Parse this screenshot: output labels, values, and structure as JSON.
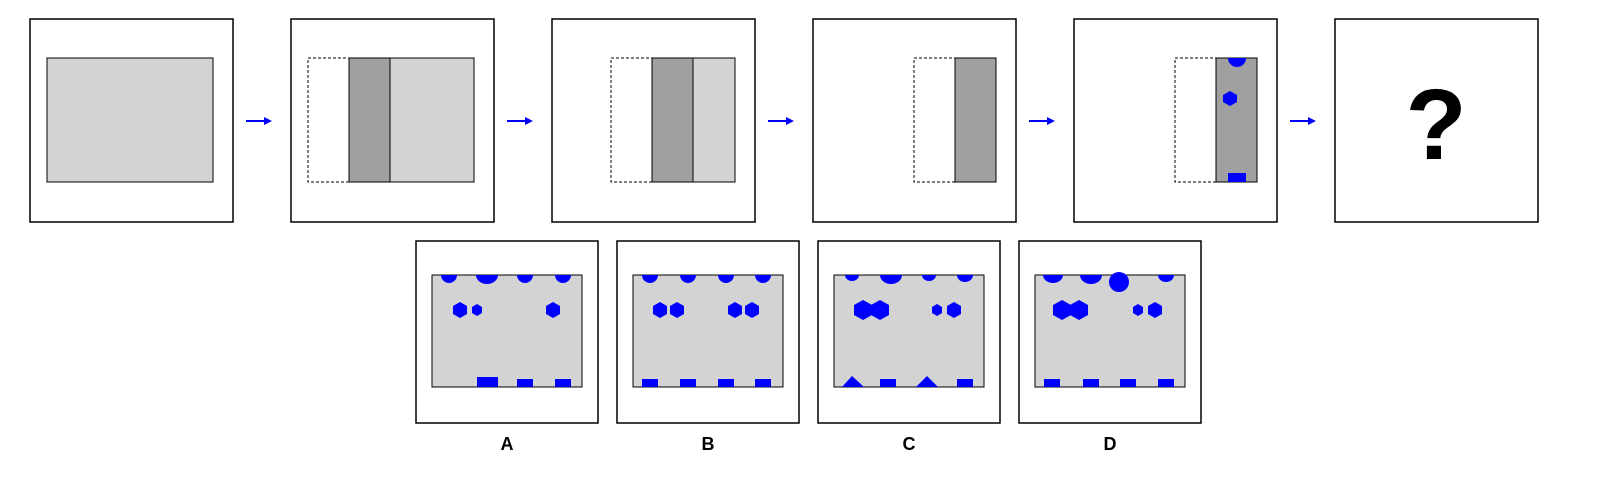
{
  "puzzle": {
    "sequence_step_count": 6,
    "unknown_symbol": "?",
    "arrow_icon": "arrow-right-icon",
    "colors": {
      "panel_fill": "#d3d3d3",
      "dark_strip": "#a0a0a0",
      "shape_blue": "#0000ff",
      "border": "#000000",
      "arrow": "#0000ff"
    }
  },
  "options": [
    {
      "label": "A",
      "icons": [
        "circle-icon",
        "hexagon-icon",
        "rectangle-icon"
      ]
    },
    {
      "label": "B",
      "icons": [
        "circle-icon",
        "hexagon-icon",
        "rectangle-icon"
      ]
    },
    {
      "label": "C",
      "icons": [
        "circle-icon",
        "hexagon-icon",
        "rectangle-icon",
        "triangle-icon"
      ]
    },
    {
      "label": "D",
      "icons": [
        "circle-icon",
        "hexagon-icon",
        "rectangle-icon"
      ]
    }
  ]
}
